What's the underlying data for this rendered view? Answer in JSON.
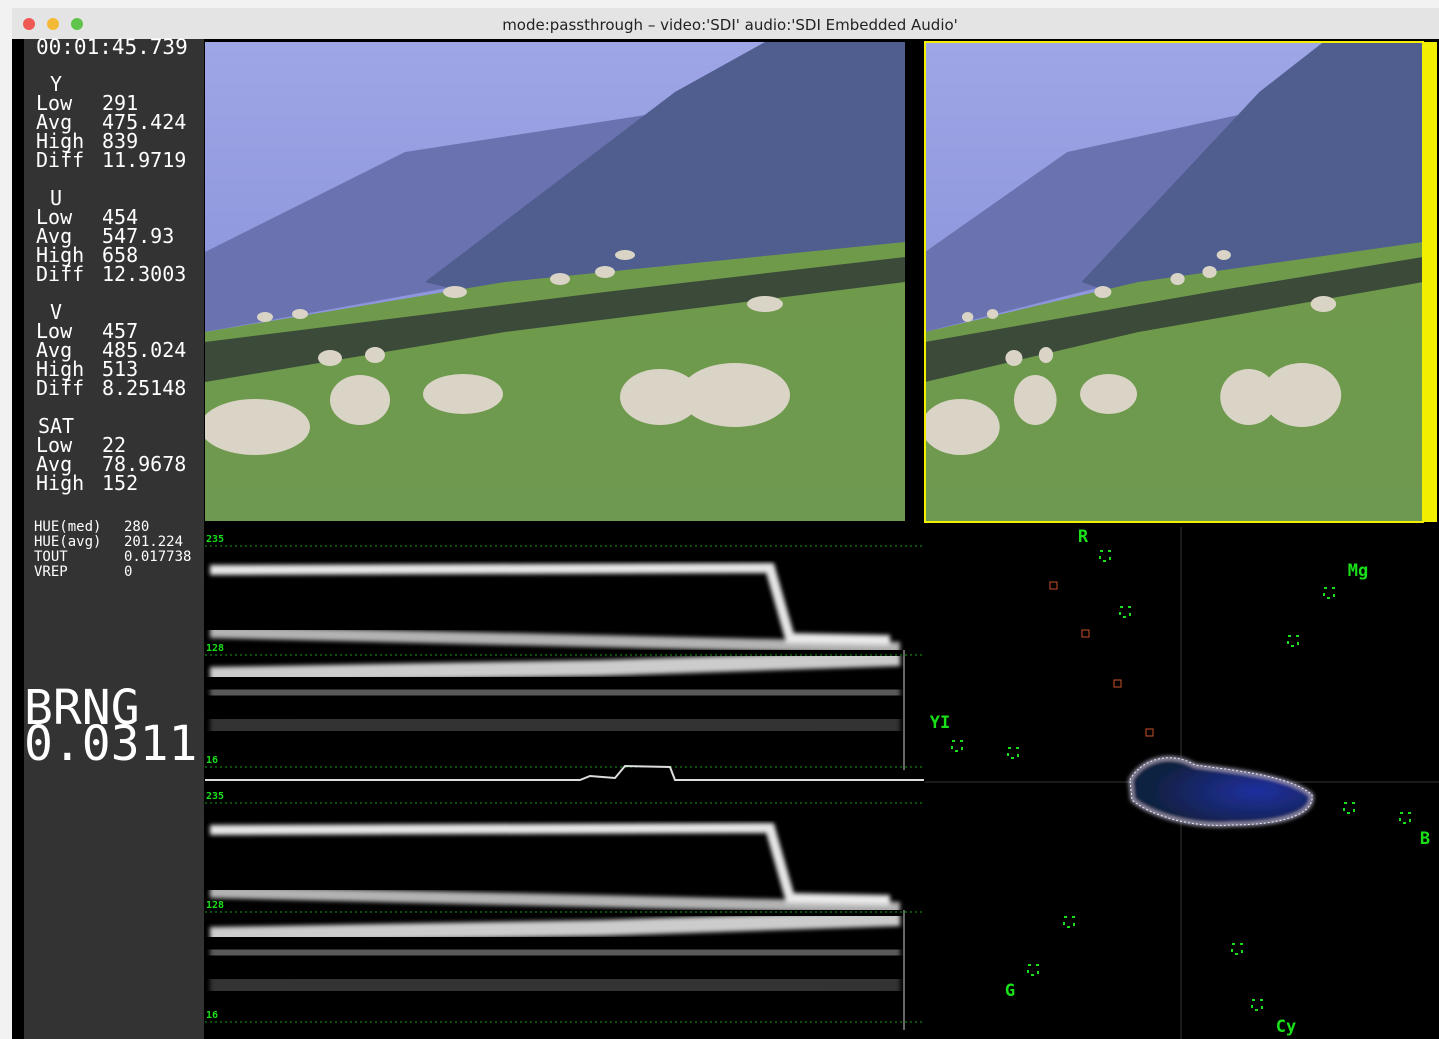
{
  "window": {
    "title": "mode:passthrough – video:'SDI' audio:'SDI Embedded Audio'"
  },
  "stats": {
    "timecode": "00:01:45.739",
    "groups": [
      {
        "name": "Y",
        "rows": [
          [
            "Low",
            291
          ],
          [
            "Avg",
            475.424
          ],
          [
            "High",
            839
          ],
          [
            "Diff",
            11.9719
          ]
        ]
      },
      {
        "name": "U",
        "rows": [
          [
            "Low",
            454
          ],
          [
            "Avg",
            547.93
          ],
          [
            "High",
            658
          ],
          [
            "Diff",
            12.3003
          ]
        ]
      },
      {
        "name": "V",
        "rows": [
          [
            "Low",
            457
          ],
          [
            "Avg",
            485.024
          ],
          [
            "High",
            513
          ],
          [
            "Diff",
            8.25148
          ]
        ]
      },
      {
        "name": "SAT",
        "rows": [
          [
            "Low",
            22
          ],
          [
            "Avg",
            78.9678
          ],
          [
            "High",
            152
          ]
        ]
      }
    ],
    "extra": [
      [
        "HUE(med)",
        280
      ],
      [
        "HUE(avg)",
        201.224
      ],
      [
        "TOUT",
        0.017738
      ],
      [
        "VREP",
        0
      ]
    ],
    "brng": {
      "label": "BRNG",
      "value": 0.0311
    }
  },
  "waveforms": [
    {
      "levels": [
        235,
        128,
        16
      ]
    },
    {
      "levels": [
        235,
        128,
        16
      ]
    }
  ],
  "vectorscope": {
    "labels": [
      "R",
      "Mg",
      "YI",
      "B",
      "G",
      "Cy"
    ]
  }
}
